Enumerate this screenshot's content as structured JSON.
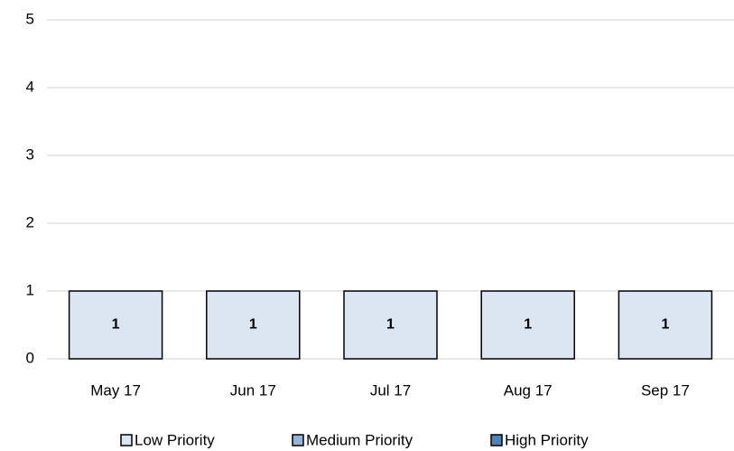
{
  "chart_data": {
    "type": "stacked_bar",
    "categories": [
      "May 17",
      "Jun 17",
      "Jul 17",
      "Aug 17",
      "Sep 17"
    ],
    "series": [
      {
        "name": "Low Priority",
        "color": "#dce6f2",
        "values": [
          1,
          1,
          1,
          1,
          1
        ]
      },
      {
        "name": "Medium Priority",
        "color": "#95b3d7",
        "values": [
          0,
          0,
          0,
          0,
          0
        ]
      },
      {
        "name": "High Priority",
        "color": "#4f81bd",
        "values": [
          0,
          0,
          0,
          0,
          0
        ]
      }
    ],
    "ylim": [
      0,
      5
    ],
    "yticks": [
      0,
      1,
      2,
      3,
      4,
      5
    ],
    "grid": true,
    "legend": "bottom"
  }
}
